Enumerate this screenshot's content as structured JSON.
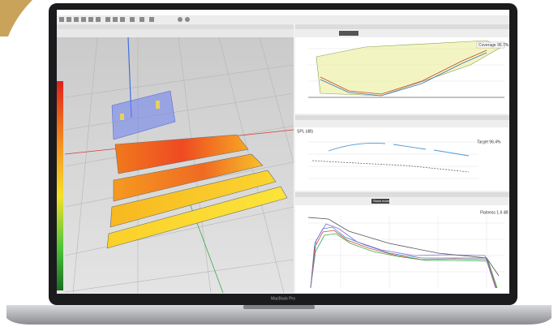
{
  "laptop": {
    "label": "MacBook Pro"
  },
  "panels": {
    "coverage": "Coverage 96.7%",
    "target": "Target 96.4%",
    "spl_axis": "SPL (dB)",
    "show_more": "Show more",
    "flatness": "Flatness 1.6 dB"
  }
}
